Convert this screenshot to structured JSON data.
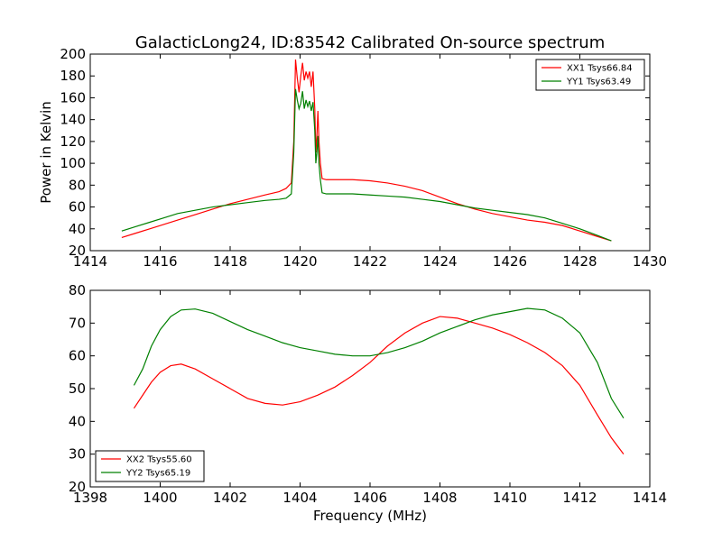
{
  "figure": {
    "title": "GalacticLong24, ID:83542 Calibrated On-source spectrum",
    "xlabel": "Frequency (MHz)"
  },
  "chart_data": [
    {
      "type": "line",
      "title": "GalacticLong24, ID:83542 Calibrated On-source spectrum",
      "xlabel": "",
      "ylabel": "Power in Kelvin",
      "xlim": [
        1414,
        1430
      ],
      "ylim": [
        20,
        200
      ],
      "xticks": [
        1414,
        1416,
        1418,
        1420,
        1422,
        1424,
        1426,
        1428,
        1430
      ],
      "yticks": [
        20,
        40,
        60,
        80,
        100,
        120,
        140,
        160,
        180,
        200
      ],
      "grid": false,
      "legend": "top-right",
      "series": [
        {
          "name": "XX1 Tsys66.84",
          "color": "#ff0000",
          "points": [
            [
              1414.9,
              32
            ],
            [
              1415.3,
              36
            ],
            [
              1415.7,
              40
            ],
            [
              1416.1,
              44
            ],
            [
              1416.5,
              48
            ],
            [
              1417.0,
              53
            ],
            [
              1417.5,
              58
            ],
            [
              1418.0,
              63
            ],
            [
              1418.5,
              67
            ],
            [
              1419.0,
              71
            ],
            [
              1419.4,
              74
            ],
            [
              1419.6,
              77
            ],
            [
              1419.75,
              82
            ],
            [
              1419.82,
              120
            ],
            [
              1419.87,
              195
            ],
            [
              1419.92,
              178
            ],
            [
              1419.97,
              165
            ],
            [
              1420.02,
              180
            ],
            [
              1420.07,
              192
            ],
            [
              1420.12,
              176
            ],
            [
              1420.17,
              184
            ],
            [
              1420.22,
              178
            ],
            [
              1420.27,
              184
            ],
            [
              1420.32,
              170
            ],
            [
              1420.37,
              184
            ],
            [
              1420.42,
              150
            ],
            [
              1420.45,
              110
            ],
            [
              1420.48,
              125
            ],
            [
              1420.51,
              148
            ],
            [
              1420.54,
              120
            ],
            [
              1420.58,
              100
            ],
            [
              1420.63,
              86
            ],
            [
              1420.75,
              85
            ],
            [
              1421.0,
              85
            ],
            [
              1421.5,
              85
            ],
            [
              1422.0,
              84
            ],
            [
              1422.5,
              82
            ],
            [
              1423.0,
              79
            ],
            [
              1423.5,
              75
            ],
            [
              1424.0,
              69
            ],
            [
              1424.5,
              63
            ],
            [
              1425.0,
              58
            ],
            [
              1425.5,
              54
            ],
            [
              1426.0,
              51
            ],
            [
              1426.5,
              48
            ],
            [
              1427.0,
              46
            ],
            [
              1427.5,
              43
            ],
            [
              1428.0,
              38
            ],
            [
              1428.5,
              33
            ],
            [
              1428.9,
              29
            ]
          ]
        },
        {
          "name": "YY1 Tsys63.49",
          "color": "#008000",
          "points": [
            [
              1414.9,
              38
            ],
            [
              1415.3,
              42
            ],
            [
              1415.7,
              46
            ],
            [
              1416.1,
              50
            ],
            [
              1416.5,
              54
            ],
            [
              1417.0,
              57
            ],
            [
              1417.5,
              60
            ],
            [
              1418.0,
              62
            ],
            [
              1418.5,
              64
            ],
            [
              1419.0,
              66
            ],
            [
              1419.4,
              67
            ],
            [
              1419.6,
              68
            ],
            [
              1419.75,
              72
            ],
            [
              1419.82,
              110
            ],
            [
              1419.87,
              168
            ],
            [
              1419.92,
              158
            ],
            [
              1419.97,
              150
            ],
            [
              1420.02,
              155
            ],
            [
              1420.07,
              166
            ],
            [
              1420.12,
              150
            ],
            [
              1420.17,
              158
            ],
            [
              1420.22,
              152
            ],
            [
              1420.27,
              157
            ],
            [
              1420.32,
              148
            ],
            [
              1420.37,
              156
            ],
            [
              1420.42,
              130
            ],
            [
              1420.45,
              100
            ],
            [
              1420.48,
              110
            ],
            [
              1420.51,
              125
            ],
            [
              1420.54,
              100
            ],
            [
              1420.58,
              85
            ],
            [
              1420.63,
              73
            ],
            [
              1420.75,
              72
            ],
            [
              1421.0,
              72
            ],
            [
              1421.5,
              72
            ],
            [
              1422.0,
              71
            ],
            [
              1422.5,
              70
            ],
            [
              1423.0,
              69
            ],
            [
              1423.5,
              67
            ],
            [
              1424.0,
              65
            ],
            [
              1424.5,
              62
            ],
            [
              1425.0,
              59
            ],
            [
              1425.5,
              57
            ],
            [
              1426.0,
              55
            ],
            [
              1426.5,
              53
            ],
            [
              1427.0,
              50
            ],
            [
              1427.5,
              45
            ],
            [
              1428.0,
              40
            ],
            [
              1428.5,
              34
            ],
            [
              1428.9,
              29
            ]
          ]
        }
      ]
    },
    {
      "type": "line",
      "title": "",
      "xlabel": "Frequency (MHz)",
      "ylabel": "",
      "xlim": [
        1398,
        1414
      ],
      "ylim": [
        20,
        80
      ],
      "xticks": [
        1398,
        1400,
        1402,
        1404,
        1406,
        1408,
        1410,
        1412,
        1414
      ],
      "yticks": [
        20,
        30,
        40,
        50,
        60,
        70,
        80
      ],
      "grid": false,
      "legend": "bottom-left",
      "series": [
        {
          "name": "XX2 Tsys55.60",
          "color": "#ff0000",
          "points": [
            [
              1399.25,
              44
            ],
            [
              1399.5,
              48
            ],
            [
              1399.75,
              52
            ],
            [
              1400.0,
              55
            ],
            [
              1400.3,
              57
            ],
            [
              1400.6,
              57.5
            ],
            [
              1401.0,
              56
            ],
            [
              1401.5,
              53
            ],
            [
              1402.0,
              50
            ],
            [
              1402.5,
              47
            ],
            [
              1403.0,
              45.5
            ],
            [
              1403.5,
              45
            ],
            [
              1404.0,
              46
            ],
            [
              1404.5,
              48
            ],
            [
              1405.0,
              50.5
            ],
            [
              1405.5,
              54
            ],
            [
              1406.0,
              58
            ],
            [
              1406.5,
              63
            ],
            [
              1407.0,
              67
            ],
            [
              1407.5,
              70
            ],
            [
              1408.0,
              72
            ],
            [
              1408.5,
              71.5
            ],
            [
              1409.0,
              70
            ],
            [
              1409.5,
              68.5
            ],
            [
              1410.0,
              66.5
            ],
            [
              1410.5,
              64
            ],
            [
              1411.0,
              61
            ],
            [
              1411.5,
              57
            ],
            [
              1412.0,
              51
            ],
            [
              1412.5,
              42
            ],
            [
              1412.9,
              35
            ],
            [
              1413.25,
              30
            ]
          ]
        },
        {
          "name": "YY2 Tsys65.19",
          "color": "#008000",
          "points": [
            [
              1399.25,
              51
            ],
            [
              1399.5,
              56
            ],
            [
              1399.75,
              63
            ],
            [
              1400.0,
              68
            ],
            [
              1400.3,
              72
            ],
            [
              1400.6,
              74
            ],
            [
              1401.0,
              74.3
            ],
            [
              1401.5,
              73
            ],
            [
              1402.0,
              70.5
            ],
            [
              1402.5,
              68
            ],
            [
              1403.0,
              66
            ],
            [
              1403.5,
              64
            ],
            [
              1404.0,
              62.5
            ],
            [
              1404.5,
              61.5
            ],
            [
              1405.0,
              60.5
            ],
            [
              1405.5,
              60
            ],
            [
              1406.0,
              60
            ],
            [
              1406.5,
              61
            ],
            [
              1407.0,
              62.5
            ],
            [
              1407.5,
              64.5
            ],
            [
              1408.0,
              67
            ],
            [
              1408.5,
              69
            ],
            [
              1409.0,
              71
            ],
            [
              1409.5,
              72.5
            ],
            [
              1410.0,
              73.5
            ],
            [
              1410.5,
              74.5
            ],
            [
              1411.0,
              74
            ],
            [
              1411.5,
              71.5
            ],
            [
              1412.0,
              67
            ],
            [
              1412.5,
              58
            ],
            [
              1412.9,
              47
            ],
            [
              1413.25,
              41
            ]
          ]
        }
      ]
    }
  ]
}
